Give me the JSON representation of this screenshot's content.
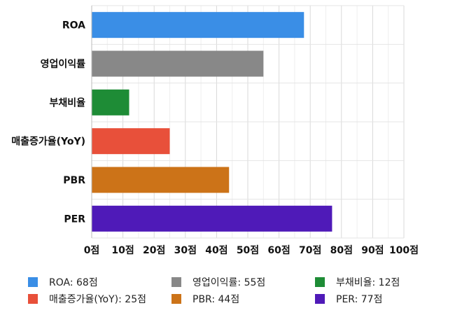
{
  "chart_data": {
    "type": "bar",
    "orientation": "horizontal",
    "categories": [
      "ROA",
      "영업이익률",
      "부채비율",
      "매출증가율(YoY)",
      "PBR",
      "PER"
    ],
    "values": [
      68,
      55,
      12,
      25,
      44,
      77
    ],
    "colors": [
      "#3a8ee6",
      "#888888",
      "#1e8c36",
      "#e8503a",
      "#cc7318",
      "#4f1ab8"
    ],
    "xlim": [
      0,
      100
    ],
    "xticks": [
      0,
      10,
      20,
      30,
      40,
      50,
      60,
      70,
      80,
      90,
      100
    ],
    "xtick_labels": [
      "0점",
      "10점",
      "20점",
      "30점",
      "40점",
      "50점",
      "60점",
      "70점",
      "80점",
      "90점",
      "100점"
    ],
    "grid": true,
    "legend_position": "bottom",
    "legend_labels": [
      "ROA: 68점",
      "영업이익률: 55점",
      "부채비율: 12점",
      "매출증가율(YoY): 25점",
      "PBR: 44점",
      "PER: 77점"
    ]
  }
}
